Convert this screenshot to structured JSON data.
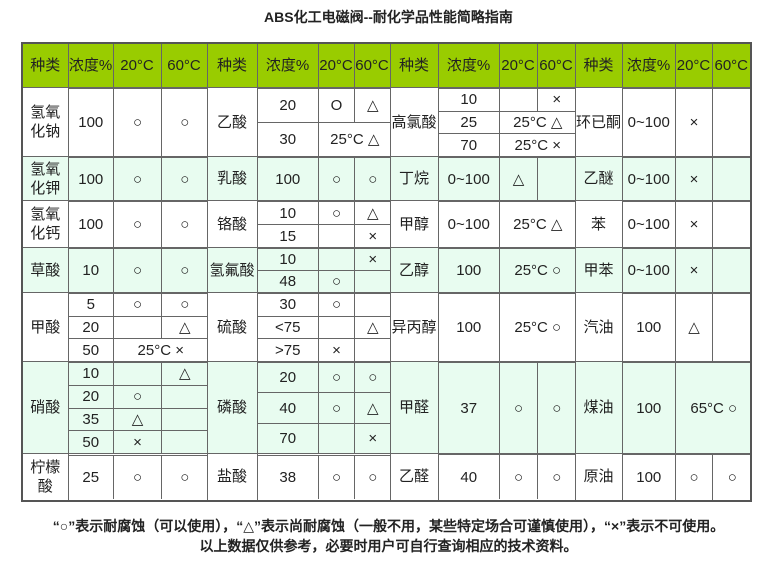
{
  "title": "ABS化工电磁阀--耐化学品性能简略指南",
  "colors": {
    "header_bg": "#99cc00",
    "alt_row_bg": "#e8fcf0",
    "border": "#666666"
  },
  "header": [
    [
      "种类",
      "浓度%",
      "20°C",
      "60°C"
    ],
    [
      "种类",
      "浓度%",
      "20°C",
      "60°C"
    ],
    [
      "种类",
      "浓度%",
      "20°C",
      "60°C"
    ],
    [
      "种类",
      "浓度%",
      "20°C",
      "60°C"
    ]
  ],
  "blocks": [
    [
      {
        "name": "氢氧化钠",
        "rows": [
          {
            "c": "100",
            "a": "○",
            "b": "○"
          }
        ]
      },
      {
        "name": "乙酸",
        "rows": [
          {
            "c": "20",
            "a": "O",
            "b": "△"
          },
          {
            "c": "30",
            "m": "25°C △"
          }
        ]
      },
      {
        "name": "高氯酸",
        "rows": [
          {
            "c": "10",
            "a": "",
            "b": "×"
          },
          {
            "c": "25",
            "m": "25°C △"
          },
          {
            "c": "70",
            "m": "25°C ×"
          }
        ]
      },
      {
        "name": "环已酮",
        "rows": [
          {
            "c": "0~100",
            "a": "×",
            "b": ""
          }
        ]
      }
    ],
    [
      {
        "name": "氢氧化钾",
        "rows": [
          {
            "c": "100",
            "a": "○",
            "b": "○"
          }
        ]
      },
      {
        "name": "乳酸",
        "rows": [
          {
            "c": "100",
            "a": "○",
            "b": "○"
          }
        ]
      },
      {
        "name": "丁烷",
        "rows": [
          {
            "c": "0~100",
            "a": "△",
            "b": ""
          }
        ]
      },
      {
        "name": "乙醚",
        "rows": [
          {
            "c": "0~100",
            "a": "×",
            "b": ""
          }
        ]
      }
    ],
    [
      {
        "name": "氢氧化钙",
        "rows": [
          {
            "c": "100",
            "a": "○",
            "b": "○"
          }
        ]
      },
      {
        "name": "铬酸",
        "rows": [
          {
            "c": "10",
            "a": "○",
            "b": "△"
          },
          {
            "c": "15",
            "a": "",
            "b": "×"
          }
        ]
      },
      {
        "name": "甲醇",
        "rows": [
          {
            "c": "0~100",
            "m": "25°C △"
          }
        ]
      },
      {
        "name": "苯",
        "rows": [
          {
            "c": "0~100",
            "a": "×",
            "b": ""
          }
        ]
      }
    ],
    [
      {
        "name": "草酸",
        "rows": [
          {
            "c": "10",
            "a": "○",
            "b": "○"
          }
        ]
      },
      {
        "name": "氢氟酸",
        "rows": [
          {
            "c": "10",
            "a": "",
            "b": "×"
          },
          {
            "c": "48",
            "a": "○",
            "b": ""
          }
        ]
      },
      {
        "name": "乙醇",
        "rows": [
          {
            "c": "100",
            "m": "25°C ○"
          }
        ]
      },
      {
        "name": "甲苯",
        "rows": [
          {
            "c": "0~100",
            "a": "×",
            "b": ""
          }
        ]
      }
    ],
    [
      {
        "name": "甲酸",
        "rows": [
          {
            "c": "5",
            "a": "○",
            "b": "○"
          },
          {
            "c": "20",
            "a": "",
            "b": "△"
          },
          {
            "c": "50",
            "m": "25°C ×"
          }
        ]
      },
      {
        "name": "硫酸",
        "rows": [
          {
            "c": "30",
            "a": "○",
            "b": ""
          },
          {
            "c": "<75",
            "a": "",
            "b": "△"
          },
          {
            "c": ">75",
            "a": "×",
            "b": ""
          }
        ]
      },
      {
        "name": "异丙醇",
        "rows": [
          {
            "c": "100",
            "m": "25°C ○"
          }
        ]
      },
      {
        "name": "汽油",
        "rows": [
          {
            "c": "100",
            "a": "△",
            "b": ""
          }
        ]
      }
    ],
    [
      {
        "name": "硝酸",
        "rows": [
          {
            "c": "10",
            "a": "",
            "b": "△"
          },
          {
            "c": "20",
            "a": "○",
            "b": ""
          },
          {
            "c": "35",
            "a": "△",
            "b": ""
          },
          {
            "c": "50",
            "a": "×",
            "b": ""
          }
        ]
      },
      {
        "name": "磷酸",
        "rows": [
          {
            "c": "20",
            "a": "○",
            "b": "○"
          },
          {
            "c": "40",
            "a": "○",
            "b": "△"
          },
          {
            "c": "70",
            "a": "",
            "b": "×"
          }
        ]
      },
      {
        "name": "甲醛",
        "rows": [
          {
            "c": "37",
            "a": "○",
            "b": "○"
          }
        ]
      },
      {
        "name": "煤油",
        "rows": [
          {
            "c": "100",
            "m": "65°C ○"
          }
        ]
      }
    ],
    [
      {
        "name": "柠檬酸",
        "rows": [
          {
            "c": "25",
            "a": "○",
            "b": "○"
          }
        ]
      },
      {
        "name": "盐酸",
        "rows": [
          {
            "c": "38",
            "a": "○",
            "b": "○"
          }
        ]
      },
      {
        "name": "乙醛",
        "rows": [
          {
            "c": "40",
            "a": "○",
            "b": "○"
          }
        ]
      },
      {
        "name": "原油",
        "rows": [
          {
            "c": "100",
            "a": "○",
            "b": "○"
          }
        ]
      }
    ]
  ],
  "notes": {
    "line1": "“○”表示耐腐蚀（可以使用），“△”表示尚耐腐蚀（一般不用，某些特定场合可谨慎使用），“×”表示不可使用。",
    "line2": "以上数据仅供参考，必要时用户可自行查询相应的技术资料。"
  }
}
